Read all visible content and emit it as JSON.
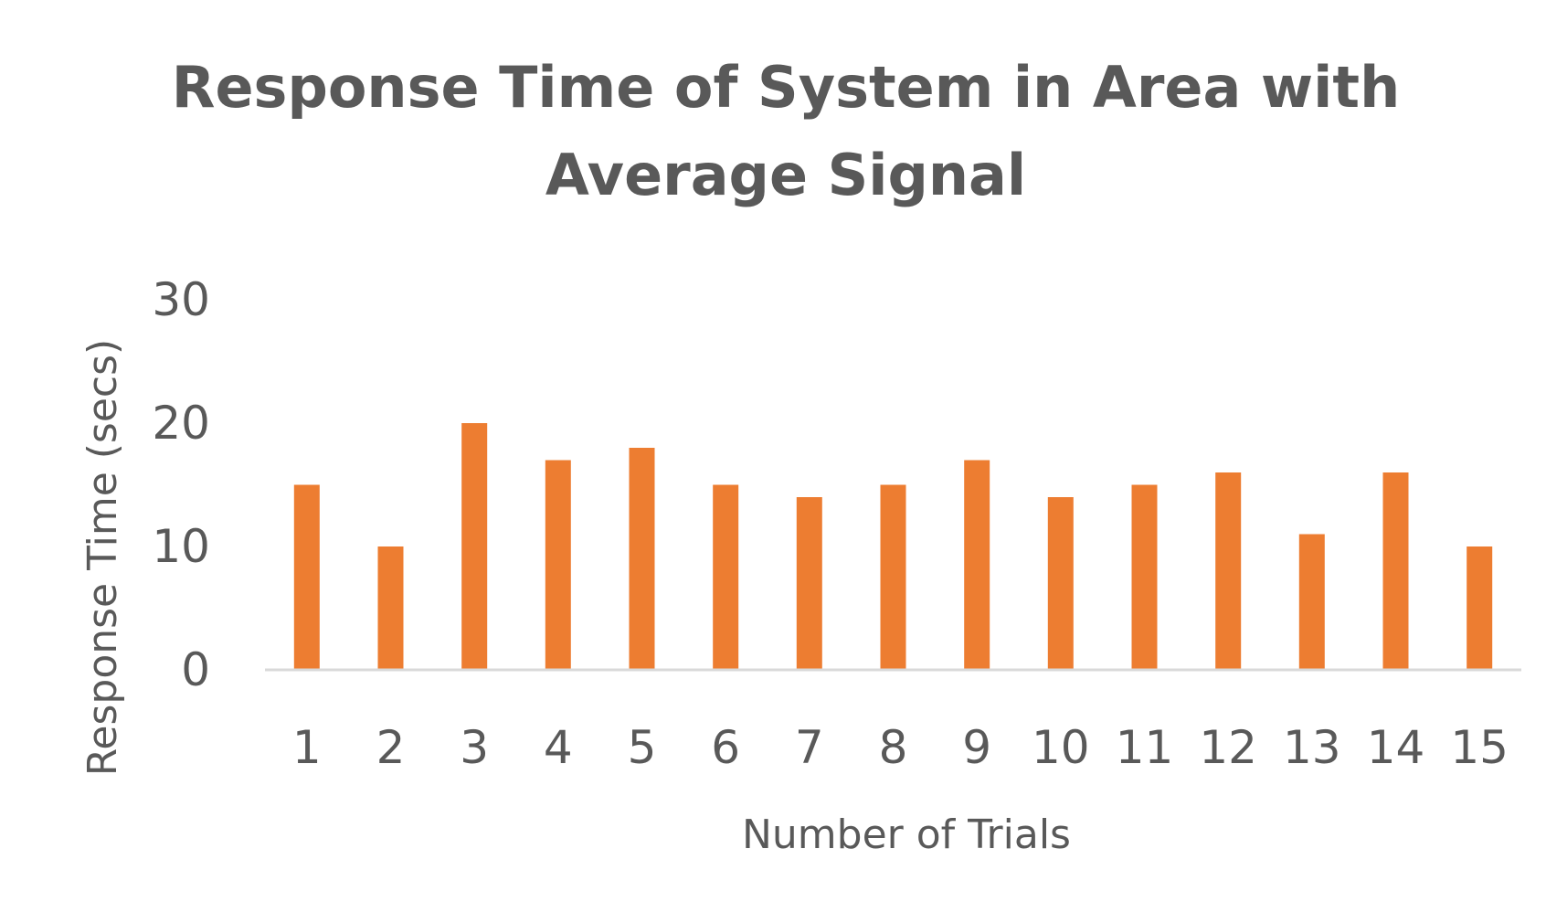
{
  "chart_data": {
    "type": "bar",
    "title_lines": [
      "Response Time of System in Area with",
      "Average Signal"
    ],
    "xlabel": "Number of Trials",
    "ylabel": "Response  Time (secs)",
    "categories": [
      "1",
      "2",
      "3",
      "4",
      "5",
      "6",
      "7",
      "8",
      "9",
      "10",
      "11",
      "12",
      "13",
      "14",
      "15"
    ],
    "series": [
      {
        "values": [
          15,
          10,
          20,
          17,
          18,
          15,
          14,
          15,
          17,
          14,
          15,
          16,
          11,
          16,
          10
        ]
      }
    ],
    "ylim": [
      0,
      30
    ],
    "yticks": [
      "0",
      "10",
      "20",
      "30"
    ],
    "grid": false,
    "legend": "none",
    "colors": {
      "bar": "#ED7D31",
      "text": "#595959",
      "axis_line": "#D9D9D9",
      "background": "#FFFFFF"
    }
  }
}
